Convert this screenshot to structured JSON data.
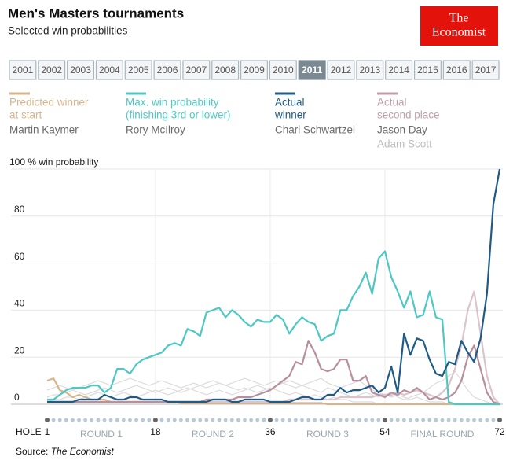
{
  "chart_data": {
    "type": "line",
    "title": "Men's Masters tournaments",
    "subtitle": "Selected win probabilities",
    "logo": [
      "The",
      "Economist"
    ],
    "years": [
      "2001",
      "2002",
      "2003",
      "2004",
      "2005",
      "2006",
      "2007",
      "2008",
      "2009",
      "2010",
      "2011",
      "2012",
      "2013",
      "2014",
      "2015",
      "2016",
      "2017"
    ],
    "selected_year": "2011",
    "legend_groups": [
      {
        "label": [
          "Predicted winner",
          "at start"
        ],
        "color": "#d6b58c"
      },
      {
        "label": [
          "Max. win probability",
          "(finishing 3rd or lower)"
        ],
        "color": "#4ec8c2"
      },
      {
        "label": [
          "Actual",
          "winner"
        ],
        "color": "#1f5b85"
      },
      {
        "label": [
          "Actual",
          "second place"
        ],
        "color": "#bf9ea9"
      }
    ],
    "x": [
      1,
      2,
      3,
      4,
      5,
      6,
      7,
      8,
      9,
      10,
      11,
      12,
      13,
      14,
      15,
      16,
      17,
      18,
      19,
      20,
      21,
      22,
      23,
      24,
      25,
      26,
      27,
      28,
      29,
      30,
      31,
      32,
      33,
      34,
      35,
      36,
      37,
      38,
      39,
      40,
      41,
      42,
      43,
      44,
      45,
      46,
      47,
      48,
      49,
      50,
      51,
      52,
      53,
      54,
      55,
      56,
      57,
      58,
      59,
      60,
      61,
      62,
      63,
      64,
      65,
      66,
      67,
      68,
      69,
      70,
      71,
      72
    ],
    "xlim": [
      1,
      72
    ],
    "xticks": [
      1,
      18,
      36,
      54,
      72
    ],
    "x_axis_label": "HOLE",
    "rounds": [
      {
        "label": "ROUND 1",
        "holes": [
          1,
          18
        ]
      },
      {
        "label": "ROUND 2",
        "holes": [
          18,
          36
        ]
      },
      {
        "label": "ROUND 3",
        "holes": [
          36,
          54
        ]
      },
      {
        "label": "FINAL ROUND",
        "holes": [
          54,
          72
        ]
      }
    ],
    "ylim": [
      0,
      100
    ],
    "yticks": [
      0,
      20,
      40,
      60,
      80,
      {
        "value": 100,
        "label": "100 % win probability"
      }
    ],
    "grid": true,
    "series": [
      {
        "name": "Martin Kaymer",
        "group": 0,
        "color": "#d6b58c",
        "text_color": "#6b6b6b",
        "values": [
          10,
          11,
          6,
          5,
          3,
          4,
          3,
          2,
          2,
          2,
          1,
          1,
          1,
          1,
          1,
          1,
          1,
          1,
          1,
          1,
          1,
          0.5,
          0.5,
          0.5,
          0.5,
          0.5,
          0.5,
          0.5,
          0.5,
          0.5,
          0.5,
          0.5,
          0.5,
          0.5,
          0.5,
          0.5,
          0.5,
          0.5,
          0.5,
          0.5,
          0.5,
          0.5,
          0.5,
          0.5,
          0,
          0,
          0,
          0,
          0,
          0,
          0,
          0,
          0,
          0,
          0,
          0,
          0,
          0,
          0,
          0,
          0,
          0,
          0,
          0,
          0,
          0,
          0,
          0,
          0,
          0,
          0,
          0
        ]
      },
      {
        "name": "Rory McIlroy",
        "group": 1,
        "color": "#4ec8c2",
        "text_color": "#6b6b6b",
        "values": [
          2,
          2,
          4,
          6,
          7,
          7,
          7,
          8,
          8,
          5,
          7,
          15,
          15,
          13,
          17,
          19,
          20,
          21,
          22,
          25,
          26,
          25,
          32,
          31,
          29,
          39,
          40,
          41,
          37,
          40,
          38,
          35,
          33,
          36,
          35,
          35,
          38,
          36,
          30,
          34,
          37,
          35,
          34,
          27,
          29,
          30,
          40,
          40,
          46,
          50,
          56,
          47,
          62,
          65,
          54,
          48,
          41,
          48,
          37,
          38,
          48,
          37,
          36,
          1,
          0,
          0,
          0,
          0,
          0,
          0,
          0,
          0
        ]
      },
      {
        "name": "Charl Schwartzel",
        "group": 2,
        "color": "#1f5b85",
        "text_color": "#6b6b6b",
        "values": [
          1,
          1,
          1,
          1,
          1,
          2,
          2,
          2,
          2,
          4,
          3,
          2,
          2,
          3,
          3,
          2,
          2,
          2,
          2,
          1,
          1,
          1,
          1,
          1,
          1,
          1,
          2,
          2,
          2,
          1,
          1,
          2,
          2,
          2,
          2,
          1,
          1,
          1,
          1,
          2,
          3,
          3,
          2,
          2,
          4,
          4,
          7,
          5,
          6,
          6,
          7,
          8,
          5,
          7,
          16,
          5,
          30,
          21,
          28,
          27,
          19,
          13,
          12,
          18,
          17,
          27,
          22,
          18,
          28,
          47,
          85,
          100
        ]
      },
      {
        "name": "Jason Day",
        "group": 3,
        "color": "#b88f9d",
        "text_color": "#6b6b6b",
        "values": [
          1,
          1,
          1,
          1,
          1,
          1,
          1,
          1,
          1,
          1,
          1,
          1,
          1,
          1,
          1,
          1,
          1,
          1,
          1,
          1,
          1,
          1,
          1,
          1,
          1,
          2,
          2,
          2,
          2,
          2,
          3,
          3,
          3,
          4,
          5,
          6,
          8,
          10,
          12,
          18,
          17,
          27,
          22,
          15,
          14,
          15,
          19,
          19,
          10,
          10,
          12,
          5,
          4,
          3,
          5,
          4,
          6,
          5,
          7,
          5,
          2,
          3,
          2,
          3,
          5,
          10,
          20,
          25,
          15,
          5,
          1,
          0
        ]
      },
      {
        "name": "Adam Scott",
        "group": 3,
        "color": "#dcc4cb",
        "text_color": "#bdbdbd",
        "values": [
          1,
          1,
          1,
          1,
          1,
          1,
          1,
          1,
          1,
          1,
          1,
          1,
          1,
          1,
          1,
          1,
          1,
          1,
          1,
          1,
          1,
          1,
          1,
          1,
          1,
          1,
          1,
          1,
          1,
          1,
          1,
          1,
          1,
          1,
          1,
          1,
          1,
          1,
          2,
          2,
          2,
          2,
          2,
          2,
          2,
          2,
          3,
          3,
          3,
          3,
          3,
          3,
          4,
          4,
          4,
          5,
          4,
          5,
          6,
          5,
          4,
          3,
          5,
          8,
          15,
          25,
          40,
          48,
          30,
          12,
          3,
          0
        ]
      }
    ],
    "others_color": "#dcdcdc",
    "others": [
      [
        6,
        7,
        8,
        7,
        6,
        7,
        8,
        9,
        10,
        9,
        8,
        9,
        10,
        11,
        10,
        9,
        8,
        9,
        10,
        9,
        8,
        7,
        8,
        9,
        8,
        7,
        8,
        9,
        8,
        7,
        6,
        7,
        6,
        5,
        6,
        7,
        6,
        5,
        4,
        5,
        4,
        3,
        4,
        3,
        2,
        3,
        2,
        2,
        1,
        1,
        1,
        1,
        0,
        0,
        0,
        0,
        0,
        0,
        0,
        0,
        0,
        0,
        0,
        0,
        0,
        0,
        0,
        0,
        0,
        0,
        0,
        0
      ],
      [
        3,
        4,
        4,
        5,
        6,
        5,
        4,
        5,
        6,
        7,
        6,
        5,
        6,
        7,
        8,
        7,
        6,
        5,
        6,
        7,
        6,
        5,
        6,
        7,
        8,
        9,
        10,
        9,
        8,
        9,
        10,
        11,
        10,
        9,
        8,
        9,
        10,
        9,
        8,
        7,
        8,
        9,
        10,
        11,
        9,
        8,
        7,
        8,
        9,
        10,
        8,
        6,
        5,
        4,
        3,
        4,
        3,
        2,
        3,
        2,
        1,
        1,
        1,
        0,
        0,
        0,
        0,
        0,
        0,
        0,
        0,
        0
      ],
      [
        1,
        2,
        2,
        3,
        3,
        2,
        3,
        4,
        5,
        4,
        3,
        4,
        5,
        4,
        3,
        4,
        5,
        6,
        5,
        4,
        5,
        6,
        7,
        6,
        5,
        4,
        5,
        6,
        5,
        4,
        5,
        6,
        7,
        8,
        7,
        6,
        8,
        9,
        10,
        9,
        8,
        7,
        6,
        5,
        7,
        6,
        5,
        4,
        3,
        4,
        5,
        4,
        3,
        4,
        5,
        3,
        2,
        3,
        4,
        5,
        7,
        9,
        10,
        12,
        14,
        10,
        6,
        3,
        2,
        1,
        0,
        0
      ]
    ],
    "source": {
      "prefix": "Source: ",
      "name": "The Economist"
    }
  }
}
